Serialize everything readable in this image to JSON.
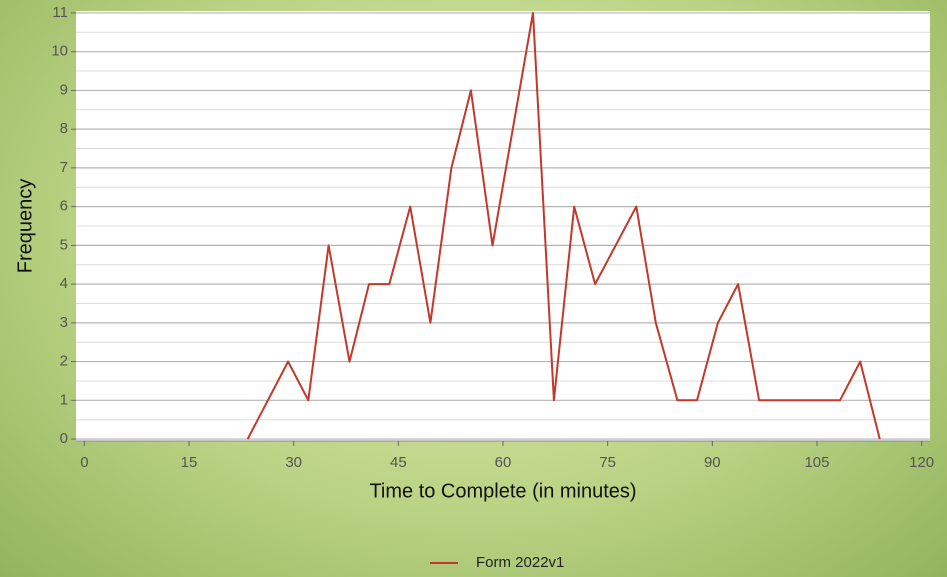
{
  "chart_data": {
    "type": "line",
    "x_label": "Time to Complete (in minutes)",
    "y_label": "Frequency",
    "series": [
      {
        "name": "Form 2022v1",
        "color": "#c0392b",
        "x": [
          23.4,
          29.2,
          32.1,
          35.0,
          38.0,
          40.8,
          43.7,
          46.7,
          49.6,
          52.6,
          55.4,
          58.5,
          64.3,
          67.3,
          70.2,
          73.2,
          79.1,
          81.9,
          85.0,
          87.8,
          90.8,
          93.7,
          96.7,
          108.3,
          111.2,
          114.0
        ],
        "values": [
          0,
          2,
          1,
          5,
          2,
          4,
          4,
          6,
          3,
          7,
          9,
          5,
          11,
          1,
          6,
          4,
          6,
          3,
          1,
          1,
          3,
          4,
          1,
          1,
          2,
          0
        ]
      }
    ],
    "xlim": [
      -1.2,
      121.2
    ],
    "xticks": [
      0,
      15,
      30,
      45,
      60,
      75,
      90,
      105,
      120
    ],
    "ylim": [
      -0.05,
      11.05
    ],
    "yticks": [
      0,
      1,
      2,
      3,
      4,
      5,
      6,
      7,
      8,
      9,
      10,
      11
    ],
    "grid": true,
    "legend": "bottom"
  }
}
